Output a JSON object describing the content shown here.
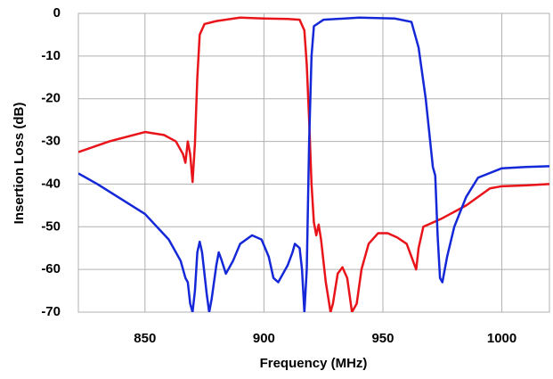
{
  "chart_data": {
    "type": "line",
    "xlabel": "Frequency (MHz)",
    "ylabel": "Insertion Loss  (dB)",
    "xlim": [
      822,
      1020
    ],
    "ylim": [
      -70,
      0
    ],
    "xticks": [
      850,
      900,
      950,
      1000
    ],
    "yticks": [
      0,
      -10,
      -20,
      -30,
      -40,
      -50,
      -60,
      -70
    ],
    "grid": true,
    "series": [
      {
        "color": "#e8141a",
        "x": [
          822,
          835,
          850,
          858,
          863,
          866,
          867,
          868,
          869,
          870,
          871,
          872,
          873,
          875,
          880,
          890,
          900,
          910,
          915,
          917,
          918,
          919,
          920,
          921,
          922,
          923,
          924,
          926,
          928,
          929,
          931,
          933,
          935,
          937,
          939,
          941,
          944,
          948,
          952,
          956,
          960,
          962,
          964,
          965,
          967,
          975,
          985,
          995,
          1000,
          1010,
          1020
        ],
        "values": [
          -32.5,
          -30,
          -27.8,
          -28.5,
          -30,
          -33,
          -35,
          -30,
          -33,
          -39.5,
          -30.5,
          -15,
          -5,
          -2.5,
          -1.8,
          -1,
          -1.2,
          -1.3,
          -1.5,
          -4,
          -12,
          -25,
          -40,
          -49,
          -52,
          -49.5,
          -53,
          -63,
          -70,
          -68,
          -61,
          -59.5,
          -62,
          -70,
          -68,
          -60,
          -54,
          -51.5,
          -51.5,
          -52.5,
          -54,
          -57,
          -60,
          -55,
          -50,
          -48,
          -45,
          -41,
          -40.5,
          -40.3,
          -40
        ]
      },
      {
        "color": "#1428d8",
        "x": [
          822,
          830,
          840,
          850,
          855,
          860,
          865,
          867,
          868,
          869,
          870,
          871,
          872,
          873,
          874,
          876,
          877,
          878,
          880,
          881,
          882,
          884,
          887,
          890,
          895,
          899,
          902,
          904,
          906,
          908,
          910,
          912,
          913,
          915,
          916,
          917,
          918,
          919,
          920,
          921,
          925,
          940,
          955,
          962,
          965,
          968,
          971,
          972,
          973,
          974,
          975,
          977,
          980,
          985,
          990,
          1000,
          1010,
          1020
        ],
        "values": [
          -37.5,
          -40,
          -43.5,
          -47,
          -50,
          -53,
          -58,
          -62,
          -63,
          -68,
          -70,
          -65,
          -56,
          -53.5,
          -56,
          -66,
          -70,
          -67,
          -59,
          -56,
          -57.5,
          -61,
          -58,
          -54,
          -52,
          -53,
          -57,
          -62,
          -63,
          -61,
          -59,
          -56,
          -54,
          -55,
          -60,
          -70,
          -60,
          -30,
          -10,
          -3,
          -1.5,
          -1,
          -1.2,
          -2,
          -8,
          -20,
          -36,
          -38,
          -52,
          -62,
          -63,
          -57,
          -50,
          -43,
          -38.5,
          -36.3,
          -36,
          -35.8
        ]
      }
    ]
  }
}
